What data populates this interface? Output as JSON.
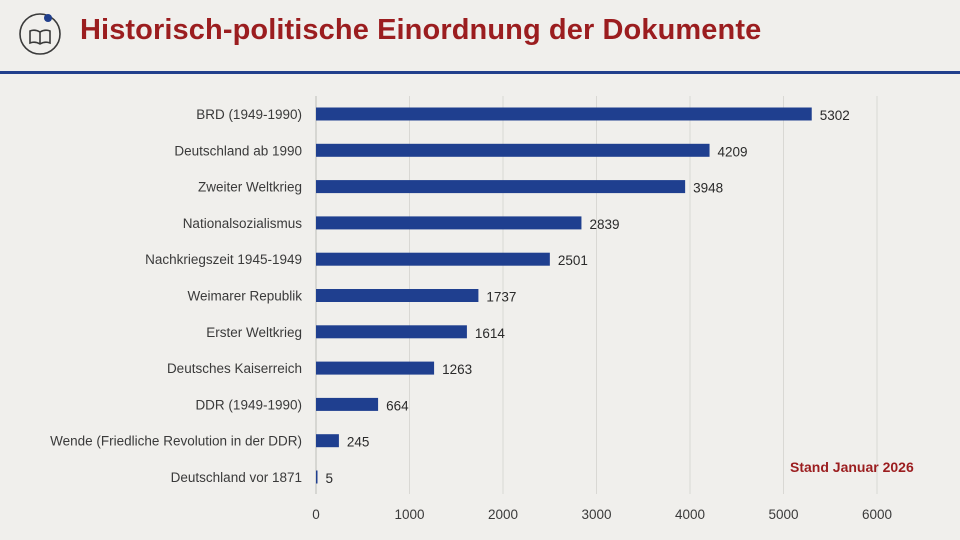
{
  "header": {
    "title": "Historisch-politische Einordnung der Dokumente",
    "logo_icon": "info-book-icon"
  },
  "note": "Stand Januar 2026",
  "colors": {
    "bar": "#1f3f8f",
    "title": "#9b1d1f",
    "rule": "#213f8c",
    "grid": "#d9d8d4"
  },
  "chart_data": {
    "type": "bar",
    "orientation": "horizontal",
    "title": "",
    "xlabel": "",
    "ylabel": "",
    "xlim": [
      0,
      6000
    ],
    "x_ticks": [
      0,
      1000,
      2000,
      3000,
      4000,
      5000,
      6000
    ],
    "grid": "vertical",
    "categories": [
      "BRD (1949-1990)",
      "Deutschland ab 1990",
      "Zweiter Weltkrieg",
      "Nationalsozialismus",
      "Nachkriegszeit 1945-1949",
      "Weimarer Republik",
      "Erster Weltkrieg",
      "Deutsches Kaiserreich",
      "DDR (1949-1990)",
      "Wende (Friedliche Revolution in der DDR)",
      "Deutschland vor 1871"
    ],
    "values": [
      5302,
      4209,
      3948,
      2839,
      2501,
      1737,
      1614,
      1263,
      664,
      245,
      5
    ]
  }
}
